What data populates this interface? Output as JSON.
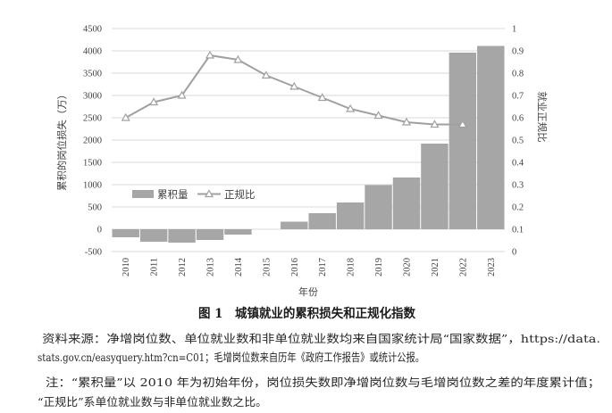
{
  "figure": {
    "caption": "图 1　城镇就业的累积损失和正规化指数",
    "source_lines": [
      "资料来源：净增岗位数、单位就业数和非单位就业数均来自国家统计局“国家数据”，https://data.",
      "stats.gov.cn/easyquery.htm?cn=C01；毛增岗位数来自历年《政府工作报告》或统计公报。"
    ],
    "note_lines": [
      "注：“累积量”以 2010 年为初始年份，岗位损失数即净增岗位数与毛增岗位数之差的年度累计值；",
      "“正规比”系单位就业数与非单位就业数之比。"
    ]
  },
  "chart_data": {
    "type": "bar",
    "categories": [
      "2010",
      "2011",
      "2012",
      "2013",
      "2014",
      "2015",
      "2016",
      "2017",
      "2018",
      "2019",
      "2020",
      "2021",
      "2022",
      "2023"
    ],
    "series": [
      {
        "name": "累积量",
        "type": "bar",
        "axis": "left",
        "color": "#a6a6a6",
        "values": [
          -180,
          -280,
          -300,
          -240,
          -120,
          0,
          170,
          360,
          600,
          990,
          1160,
          1920,
          3960,
          4110
        ]
      },
      {
        "name": "正规比",
        "type": "line",
        "axis": "right",
        "color": "#a0a0a0",
        "marker": "triangle",
        "values": [
          0.6,
          0.67,
          0.7,
          0.88,
          0.86,
          0.79,
          0.74,
          0.69,
          0.64,
          0.61,
          0.58,
          0.57,
          0.57,
          null
        ]
      }
    ],
    "title": "",
    "xlabel": "年份",
    "ylabel": "累积的岗位损失（万）",
    "y2label": "就业正规比",
    "ylim": [
      -500,
      4500
    ],
    "y2lim": [
      0,
      1
    ],
    "yticks": [
      4500,
      4000,
      3500,
      3000,
      2500,
      2000,
      1500,
      1000,
      500,
      0,
      -500
    ],
    "y2ticks": [
      1,
      0.9,
      0.8,
      0.7,
      0.6,
      0.5,
      0.4,
      0.3,
      0.2,
      0.1,
      0
    ],
    "grid": true,
    "grid_color": "#d9d9d9",
    "legend": "inside-lower-left"
  }
}
